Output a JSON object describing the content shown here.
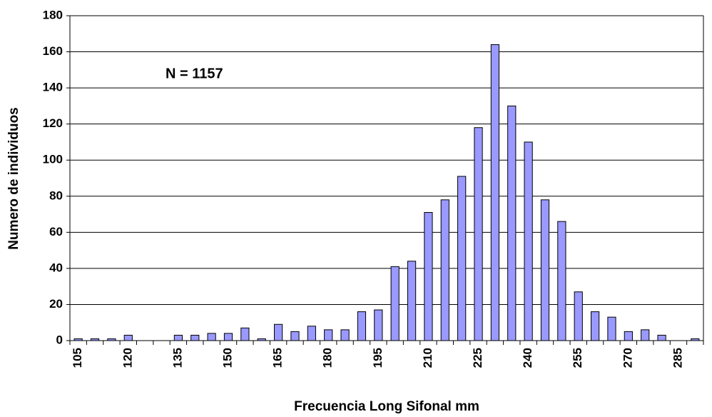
{
  "chart_data": {
    "type": "bar",
    "x_label": "Frecuencia Long Sifonal mm",
    "y_label": "Numero de individuos",
    "annotation": "N = 1157",
    "categories": [
      "105",
      null,
      null,
      "120",
      null,
      null,
      "135",
      null,
      null,
      "150",
      null,
      null,
      "165",
      null,
      null,
      "180",
      null,
      null,
      "195",
      null,
      null,
      "210",
      null,
      null,
      "225",
      null,
      null,
      "240",
      null,
      null,
      "255",
      null,
      null,
      "270",
      null,
      null,
      "285",
      null
    ],
    "values": [
      1,
      1,
      1,
      3,
      0,
      0,
      3,
      3,
      4,
      4,
      7,
      1,
      9,
      5,
      8,
      6,
      6,
      16,
      17,
      41,
      44,
      71,
      78,
      91,
      118,
      164,
      130,
      110,
      78,
      66,
      27,
      16,
      13,
      5,
      6,
      3,
      0,
      1
    ],
    "color": "#9999ff",
    "ylim": [
      0,
      180
    ],
    "yticks": [
      0,
      20,
      40,
      60,
      80,
      100,
      120,
      140,
      160,
      180
    ],
    "grid": true
  }
}
